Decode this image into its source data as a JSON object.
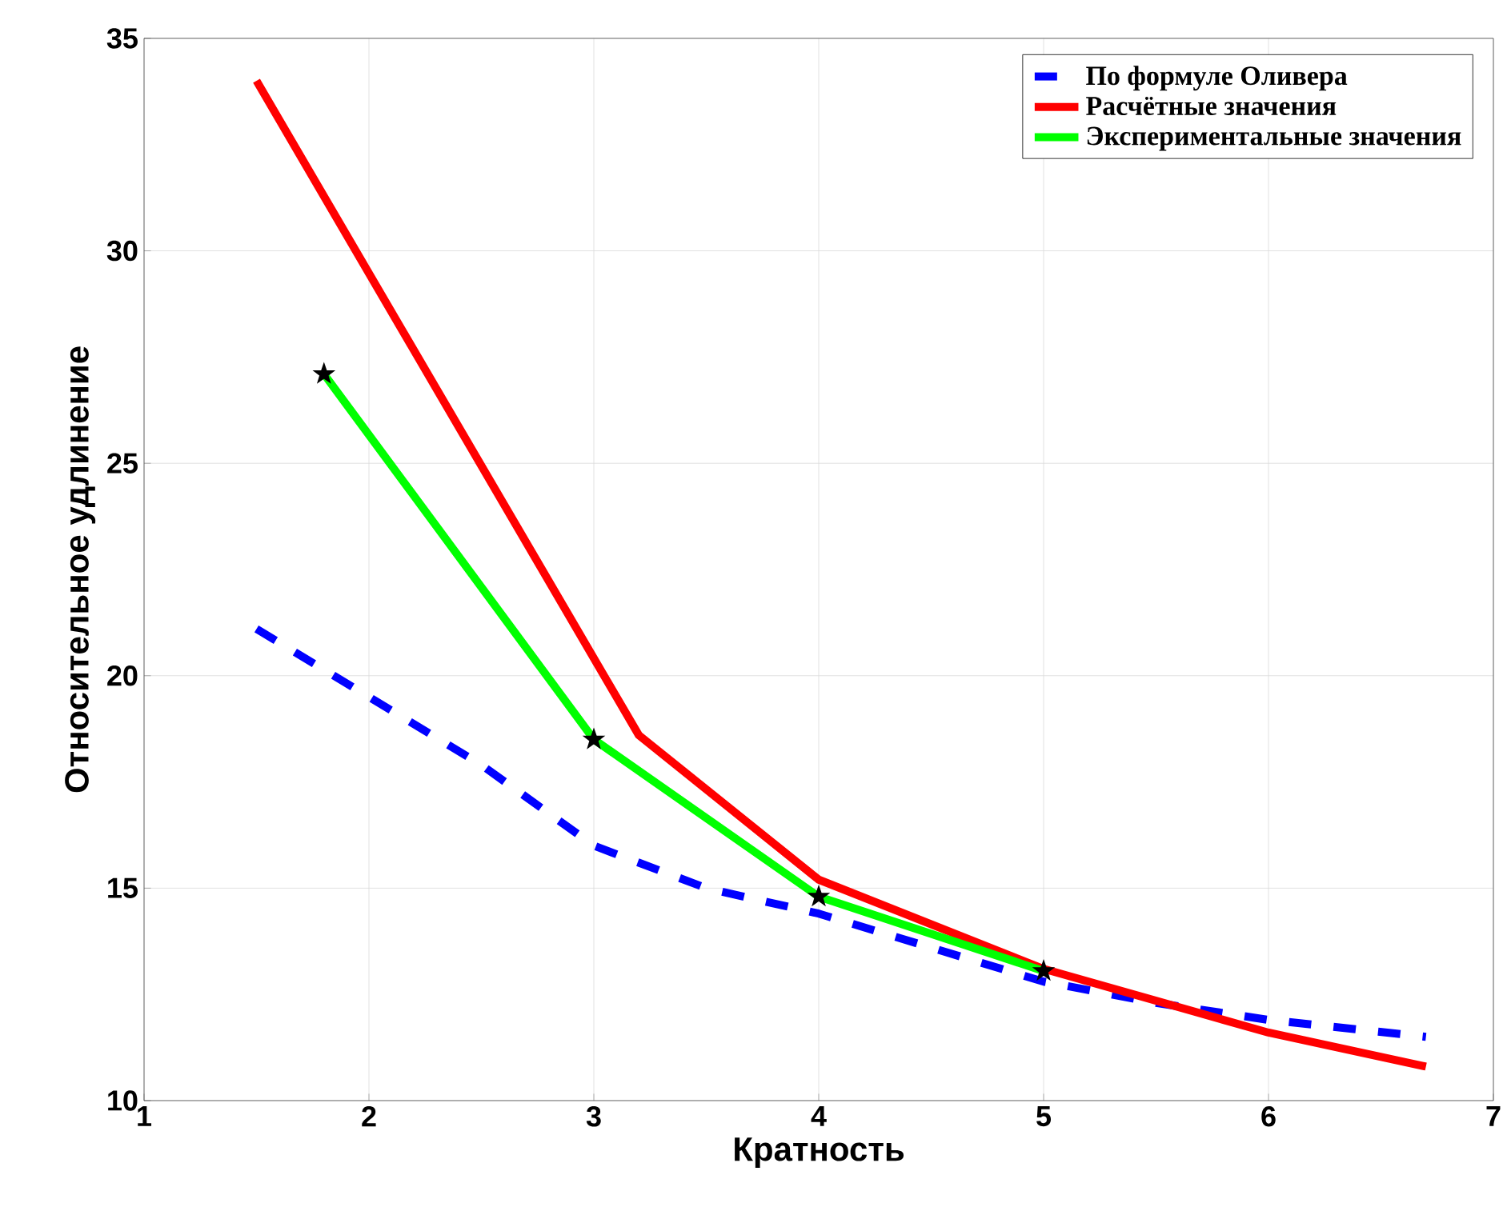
{
  "chart_data": {
    "type": "line",
    "xlabel": "Кратность",
    "ylabel": "Относительное удлинение",
    "xlim": [
      1,
      7
    ],
    "ylim": [
      10,
      35
    ],
    "xticks": [
      1,
      2,
      3,
      4,
      5,
      6,
      7
    ],
    "yticks": [
      10,
      15,
      20,
      25,
      30,
      35
    ],
    "grid": true,
    "legend": "top right",
    "series": [
      {
        "name": "По формуле Оливера",
        "color": "#0000ff",
        "line_style": "dashed",
        "x": [
          1.5,
          2,
          2.5,
          3,
          3.5,
          4,
          4.5,
          5,
          5.5,
          6,
          6.7
        ],
        "values": [
          21.1,
          19.5,
          17.9,
          16.0,
          15.0,
          14.4,
          13.6,
          12.8,
          12.3,
          11.9,
          11.5
        ]
      },
      {
        "name": "Расчётные значения",
        "color": "#ff0000",
        "line_style": "solid",
        "x": [
          1.5,
          3.2,
          4,
          5,
          6,
          6.7
        ],
        "values": [
          34.0,
          18.6,
          15.2,
          13.1,
          11.6,
          10.8
        ]
      },
      {
        "name": "Экспериментальные значения",
        "color": "#00ff00",
        "line_style": "solid",
        "x": [
          1.8,
          3,
          4,
          5
        ],
        "values": [
          27.1,
          18.5,
          14.8,
          13.05
        ]
      },
      {
        "type": "scatter",
        "color": "#000000",
        "marker": "star",
        "x": [
          1.8,
          3,
          4,
          5
        ],
        "values": [
          27.1,
          18.5,
          14.8,
          13.05
        ]
      }
    ]
  }
}
